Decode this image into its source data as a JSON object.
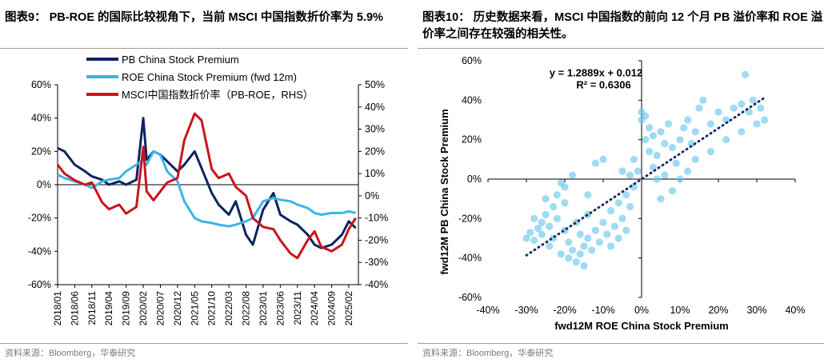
{
  "left": {
    "title": "图表9：  PB-ROE  的国际比较视角下，当前  MSCI  中国指数折价率为 5.9%",
    "source": "资料来源：Bloomberg，华泰研究",
    "chart_data": {
      "type": "line",
      "title": "",
      "x_tick_labels": [
        "2018/01",
        "2018/06",
        "2018/11",
        "2019/04",
        "2019/09",
        "2020/02",
        "2020/07",
        "2020/12",
        "2021/05",
        "2021/10",
        "2022/03",
        "2022/08",
        "2023/01",
        "2023/06",
        "2023/11",
        "2024/04",
        "2024/09",
        "2025/02"
      ],
      "y_left": {
        "range": [
          -60,
          60
        ],
        "step": 20,
        "tick_labels": [
          "60%",
          "40%",
          "20%",
          "0%",
          "-20%",
          "-40%",
          "-60%"
        ]
      },
      "y_right": {
        "range": [
          -40,
          50
        ],
        "step": 10,
        "tick_labels": [
          "50%",
          "40%",
          "30%",
          "20%",
          "10%",
          "0%",
          "-10%",
          "-20%",
          "-30%",
          "-40%"
        ]
      },
      "legend_position": "top-left",
      "series": [
        {
          "name": "PB China Stock Premium",
          "axis": "left",
          "color": "#0d2461",
          "x": [
            "2018/01",
            "2018/03",
            "2018/06",
            "2018/09",
            "2018/11",
            "2019/02",
            "2019/04",
            "2019/07",
            "2019/09",
            "2019/12",
            "2020/02",
            "2020/03",
            "2020/05",
            "2020/07",
            "2020/09",
            "2020/12",
            "2021/02",
            "2021/05",
            "2021/07",
            "2021/10",
            "2021/12",
            "2022/03",
            "2022/05",
            "2022/08",
            "2022/10",
            "2023/01",
            "2023/04",
            "2023/06",
            "2023/09",
            "2023/11",
            "2024/02",
            "2024/04",
            "2024/06",
            "2024/09",
            "2024/12",
            "2025/02",
            "2025/04"
          ],
          "values": [
            22,
            20,
            12,
            8,
            5,
            3,
            0,
            2,
            0,
            3,
            40,
            15,
            20,
            18,
            14,
            8,
            12,
            20,
            10,
            -5,
            -12,
            -18,
            -10,
            -30,
            -36,
            -15,
            -5,
            -18,
            -22,
            -24,
            -30,
            -36,
            -38,
            -36,
            -30,
            -22,
            -26
          ]
        },
        {
          "name": "ROE China Stock Premium (fwd 12m)",
          "axis": "left",
          "color": "#3bb4e8",
          "x": [
            "2018/01",
            "2018/03",
            "2018/06",
            "2018/09",
            "2018/11",
            "2019/02",
            "2019/04",
            "2019/07",
            "2019/09",
            "2019/12",
            "2020/02",
            "2020/03",
            "2020/05",
            "2020/07",
            "2020/09",
            "2020/12",
            "2021/02",
            "2021/05",
            "2021/07",
            "2021/10",
            "2021/12",
            "2022/03",
            "2022/05",
            "2022/08",
            "2022/10",
            "2023/01",
            "2023/04",
            "2023/06",
            "2023/09",
            "2023/11",
            "2024/02",
            "2024/04",
            "2024/06",
            "2024/09",
            "2024/12",
            "2025/02",
            "2025/04"
          ],
          "values": [
            6,
            4,
            2,
            0,
            -2,
            2,
            3,
            4,
            8,
            12,
            15,
            12,
            20,
            18,
            8,
            2,
            -10,
            -20,
            -22,
            -23,
            -24,
            -25,
            -24,
            -22,
            -20,
            -10,
            -8,
            -9,
            -10,
            -12,
            -14,
            -17,
            -18,
            -17,
            -17,
            -16,
            -17
          ]
        },
        {
          "name": "MSCI中国指数折价率（PB-ROE，RHS）",
          "axis": "right",
          "color": "#c9151e",
          "x": [
            "2018/01",
            "2018/03",
            "2018/06",
            "2018/09",
            "2018/11",
            "2019/02",
            "2019/04",
            "2019/07",
            "2019/09",
            "2019/12",
            "2020/02",
            "2020/03",
            "2020/05",
            "2020/07",
            "2020/09",
            "2020/12",
            "2021/02",
            "2021/05",
            "2021/07",
            "2021/10",
            "2021/12",
            "2022/03",
            "2022/05",
            "2022/08",
            "2022/10",
            "2023/01",
            "2023/04",
            "2023/06",
            "2023/09",
            "2023/11",
            "2024/02",
            "2024/04",
            "2024/06",
            "2024/09",
            "2024/12",
            "2025/02",
            "2025/04"
          ],
          "values": [
            14,
            10,
            7,
            5,
            6,
            -3,
            -6,
            -4,
            -8,
            -5,
            22,
            2,
            -2,
            2,
            6,
            8,
            25,
            37,
            34,
            12,
            8,
            10,
            4,
            0,
            -10,
            -14,
            -15,
            -20,
            -26,
            -28,
            -20,
            -16,
            -23,
            -25,
            -22,
            -15,
            -10
          ]
        }
      ]
    }
  },
  "right": {
    "title": "图表10：  历史数据来看，MSCI 中国指数的前向 12 个月 PB 溢价率和 ROE 溢价率之间存在较强的相关性。",
    "source": "资料来源：Bloomberg，华泰研究",
    "chart_data": {
      "type": "scatter",
      "xlabel": "fwd12M ROE China Stock Premium",
      "ylabel": "fwd12M PB China Stock Premium",
      "xlim": [
        -40,
        40
      ],
      "ylim": [
        -60,
        60
      ],
      "x_tick_labels": [
        "-40%",
        "-30%",
        "-20%",
        "-10%",
        "0%",
        "10%",
        "20%",
        "30%",
        "40%"
      ],
      "y_tick_labels": [
        "60%",
        "40%",
        "20%",
        "0%",
        "-20%",
        "-40%",
        "-60%"
      ],
      "point_color": "#6cc7ee",
      "trend_color": "#1b2f66",
      "equation": "y = 1.2889x + 0.012",
      "r_squared": "R² = 0.6306",
      "trendline": {
        "slope": 1.2889,
        "intercept": 0.012,
        "x_range": [
          -30,
          32
        ]
      },
      "points": [
        {
          "x": -30,
          "y": -30
        },
        {
          "x": -29,
          "y": -27
        },
        {
          "x": -28,
          "y": -31
        },
        {
          "x": -27,
          "y": -25
        },
        {
          "x": -26,
          "y": -22
        },
        {
          "x": -26,
          "y": -28
        },
        {
          "x": -25,
          "y": -18
        },
        {
          "x": -24,
          "y": -24
        },
        {
          "x": -24,
          "y": -34
        },
        {
          "x": -23,
          "y": -14
        },
        {
          "x": -23,
          "y": -30
        },
        {
          "x": -22,
          "y": -8
        },
        {
          "x": -22,
          "y": -20
        },
        {
          "x": -21,
          "y": -2
        },
        {
          "x": -21,
          "y": -38
        },
        {
          "x": -20,
          "y": -26
        },
        {
          "x": -20,
          "y": -12
        },
        {
          "x": -19,
          "y": -40
        },
        {
          "x": -19,
          "y": -32
        },
        {
          "x": -18,
          "y": 2
        },
        {
          "x": -18,
          "y": -36
        },
        {
          "x": -17,
          "y": -42
        },
        {
          "x": -17,
          "y": -22
        },
        {
          "x": -16,
          "y": -38
        },
        {
          "x": -16,
          "y": -28
        },
        {
          "x": -15,
          "y": -34
        },
        {
          "x": -15,
          "y": -44
        },
        {
          "x": -14,
          "y": -30
        },
        {
          "x": -14,
          "y": -18
        },
        {
          "x": -13,
          "y": -36
        },
        {
          "x": -12,
          "y": -26
        },
        {
          "x": -12,
          "y": 8
        },
        {
          "x": -11,
          "y": -32
        },
        {
          "x": -10,
          "y": -22
        },
        {
          "x": -10,
          "y": 10
        },
        {
          "x": -9,
          "y": -28
        },
        {
          "x": -8,
          "y": -16
        },
        {
          "x": -7,
          "y": -24
        },
        {
          "x": -6,
          "y": -12
        },
        {
          "x": -5,
          "y": -20
        },
        {
          "x": -5,
          "y": 4
        },
        {
          "x": -4,
          "y": -8
        },
        {
          "x": -3,
          "y": -14
        },
        {
          "x": -3,
          "y": 2
        },
        {
          "x": -2,
          "y": -4
        },
        {
          "x": -1,
          "y": 4
        },
        {
          "x": 0,
          "y": 34
        },
        {
          "x": 0,
          "y": 30
        },
        {
          "x": 1,
          "y": 32
        },
        {
          "x": 1,
          "y": 20
        },
        {
          "x": 2,
          "y": 14
        },
        {
          "x": 2,
          "y": 26
        },
        {
          "x": 3,
          "y": 22
        },
        {
          "x": 4,
          "y": 0
        },
        {
          "x": 4,
          "y": 12
        },
        {
          "x": 5,
          "y": 24
        },
        {
          "x": 6,
          "y": 18
        },
        {
          "x": 7,
          "y": 28
        },
        {
          "x": 8,
          "y": 16
        },
        {
          "x": 9,
          "y": 8
        },
        {
          "x": 10,
          "y": 20
        },
        {
          "x": 11,
          "y": 26
        },
        {
          "x": 12,
          "y": 30
        },
        {
          "x": 13,
          "y": 18
        },
        {
          "x": 14,
          "y": 24
        },
        {
          "x": 15,
          "y": 36
        },
        {
          "x": 16,
          "y": 40
        },
        {
          "x": 18,
          "y": 28
        },
        {
          "x": 20,
          "y": 34
        },
        {
          "x": 22,
          "y": 30
        },
        {
          "x": 24,
          "y": 36
        },
        {
          "x": 26,
          "y": 38
        },
        {
          "x": 27,
          "y": 53
        },
        {
          "x": 28,
          "y": 34
        },
        {
          "x": 29,
          "y": 40
        },
        {
          "x": 30,
          "y": 28
        },
        {
          "x": 31,
          "y": 36
        },
        {
          "x": 32,
          "y": 30
        },
        {
          "x": -28,
          "y": -20
        },
        {
          "x": -25,
          "y": -10
        },
        {
          "x": -20,
          "y": -4
        },
        {
          "x": -14,
          "y": -8
        },
        {
          "x": -8,
          "y": -34
        },
        {
          "x": -6,
          "y": -30
        },
        {
          "x": -4,
          "y": -26
        },
        {
          "x": -2,
          "y": 10
        },
        {
          "x": 3,
          "y": 6
        },
        {
          "x": 6,
          "y": 2
        },
        {
          "x": 8,
          "y": -6
        },
        {
          "x": 10,
          "y": 0
        },
        {
          "x": 12,
          "y": 4
        },
        {
          "x": 14,
          "y": 10
        },
        {
          "x": 5,
          "y": -10
        },
        {
          "x": 18,
          "y": 14
        },
        {
          "x": 22,
          "y": 20
        },
        {
          "x": 26,
          "y": 24
        }
      ]
    }
  }
}
